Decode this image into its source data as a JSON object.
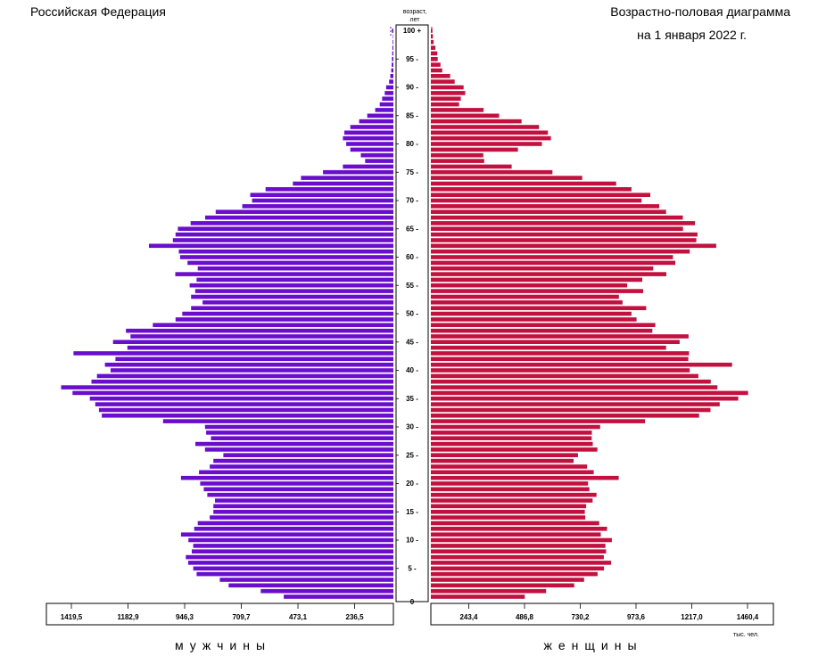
{
  "header": {
    "country": "Российская Федерация",
    "title_line1": "Возрастно-половая диаграмма",
    "title_line2": "на 1 января 2022 г."
  },
  "axis": {
    "age_label_line1": "возраст,",
    "age_label_line2": "лет",
    "unit": "тыс. чел.",
    "male_label": "мужчины",
    "female_label": "женщины"
  },
  "colors": {
    "male": "#6a0dcc",
    "female": "#c2113f",
    "frame": "#000000"
  },
  "chart_data": {
    "type": "bar",
    "orientation": "horizontal-pyramid",
    "y_axis_ticks": [
      "0",
      "5",
      "10",
      "15",
      "20",
      "25",
      "30",
      "35",
      "40",
      "45",
      "50",
      "55",
      "60",
      "65",
      "70",
      "75",
      "80",
      "85",
      "90",
      "95",
      "100 +"
    ],
    "x_ticks_male": [
      "1419,5",
      "1182,9",
      "946,3",
      "709,7",
      "473,1",
      "236,5"
    ],
    "x_ticks_female": [
      "243,4",
      "486,8",
      "730,2",
      "973,6",
      "1217,0",
      "1460,4"
    ],
    "xlim_male": [
      0,
      1419.5
    ],
    "xlim_female": [
      0,
      1460.4
    ],
    "ages": [
      0,
      1,
      2,
      3,
      4,
      5,
      6,
      7,
      8,
      9,
      10,
      11,
      12,
      13,
      14,
      15,
      16,
      17,
      18,
      19,
      20,
      21,
      22,
      23,
      24,
      25,
      26,
      27,
      28,
      29,
      30,
      31,
      32,
      33,
      34,
      35,
      36,
      37,
      38,
      39,
      40,
      41,
      42,
      43,
      44,
      45,
      46,
      47,
      48,
      49,
      50,
      51,
      52,
      53,
      54,
      55,
      56,
      57,
      58,
      59,
      60,
      61,
      62,
      63,
      64,
      65,
      66,
      67,
      68,
      69,
      70,
      71,
      72,
      73,
      74,
      75,
      76,
      77,
      78,
      79,
      80,
      81,
      82,
      83,
      84,
      85,
      86,
      87,
      88,
      89,
      90,
      91,
      92,
      93,
      94,
      95,
      96,
      97,
      98,
      99,
      100
    ],
    "series": [
      {
        "name": "мужчины",
        "values": [
          458,
          554,
          688,
          725,
          822,
          836,
          857,
          867,
          842,
          836,
          856,
          887,
          832,
          817,
          767,
          752,
          752,
          745,
          777,
          792,
          807,
          887,
          812,
          767,
          752,
          710,
          787,
          827,
          762,
          782,
          787,
          962,
          1218,
          1230,
          1245,
          1268,
          1340,
          1388,
          1261,
          1238,
          1181,
          1205,
          1161,
          1336,
          1111,
          1171,
          1098,
          1117,
          1005,
          910,
          882,
          845,
          797,
          845,
          828,
          851,
          822,
          911,
          817,
          860,
          891,
          896,
          1021,
          921,
          910,
          900,
          847,
          786,
          742,
          631,
          590,
          598,
          534,
          420,
          386,
          294,
          211,
          118,
          136,
          180,
          197,
          211,
          205,
          180,
          143,
          109,
          76,
          57,
          47,
          36,
          30,
          18,
          13,
          9,
          7,
          6,
          5,
          4,
          3,
          2,
          6
        ]
      },
      {
        "name": "женщины",
        "values": [
          410,
          503,
          626,
          669,
          728,
          756,
          787,
          755,
          765,
          762,
          790,
          742,
          769,
          735,
          674,
          672,
          678,
          706,
          723,
          692,
          686,
          820,
          711,
          682,
          623,
          642,
          727,
          707,
          702,
          703,
          739,
          935,
          1171,
          1221,
          1261,
          1342,
          1385,
          1251,
          1222,
          1168,
          1130,
          1315,
          1124,
          1127,
          1027,
          1086,
          1125,
          967,
          980,
          898,
          876,
          940,
          837,
          821,
          927,
          857,
          923,
          1028,
          971,
          1067,
          1057,
          1130,
          1246,
          1159,
          1164,
          1101,
          1153,
          1100,
          1027,
          997,
          920,
          958,
          876,
          809,
          661,
          531,
          353,
          233,
          229,
          380,
          485,
          524,
          511,
          472,
          396,
          298,
          230,
          123,
          131,
          150,
          143,
          104,
          84,
          50,
          42,
          30,
          28,
          20,
          12,
          9,
          7
        ]
      }
    ]
  }
}
